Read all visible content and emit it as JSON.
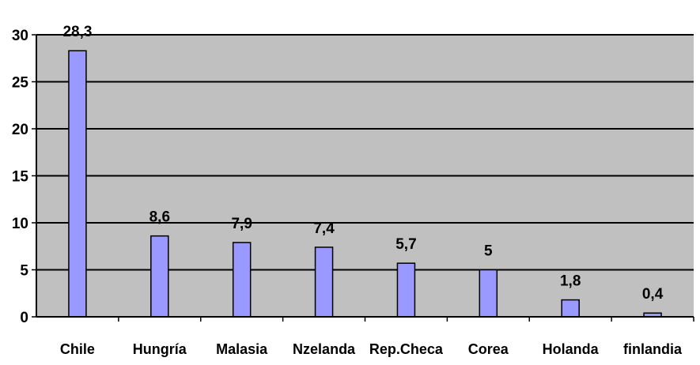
{
  "chart_data": {
    "type": "bar",
    "categories": [
      "Chile",
      "Hungría",
      "Malasia",
      "Nzelanda",
      "Rep.Checa",
      "Corea",
      "Holanda",
      "finlandia"
    ],
    "values": [
      28.3,
      8.6,
      7.9,
      7.4,
      5.7,
      5,
      1.8,
      0.4
    ],
    "data_labels": [
      "28,3",
      "8,6",
      "7,9",
      "7,4",
      "5,7",
      "5",
      "1,8",
      "0,4"
    ],
    "title": "",
    "xlabel": "",
    "ylabel": "",
    "ylim": [
      0,
      30
    ],
    "yticks": [
      0,
      5,
      10,
      15,
      20,
      25,
      30
    ],
    "grid": true,
    "legend": "none",
    "colors": {
      "bar_fill": "#9999ff",
      "bar_stroke": "#000000",
      "plot_background": "#c0c0c0",
      "gridline": "#000000"
    }
  }
}
